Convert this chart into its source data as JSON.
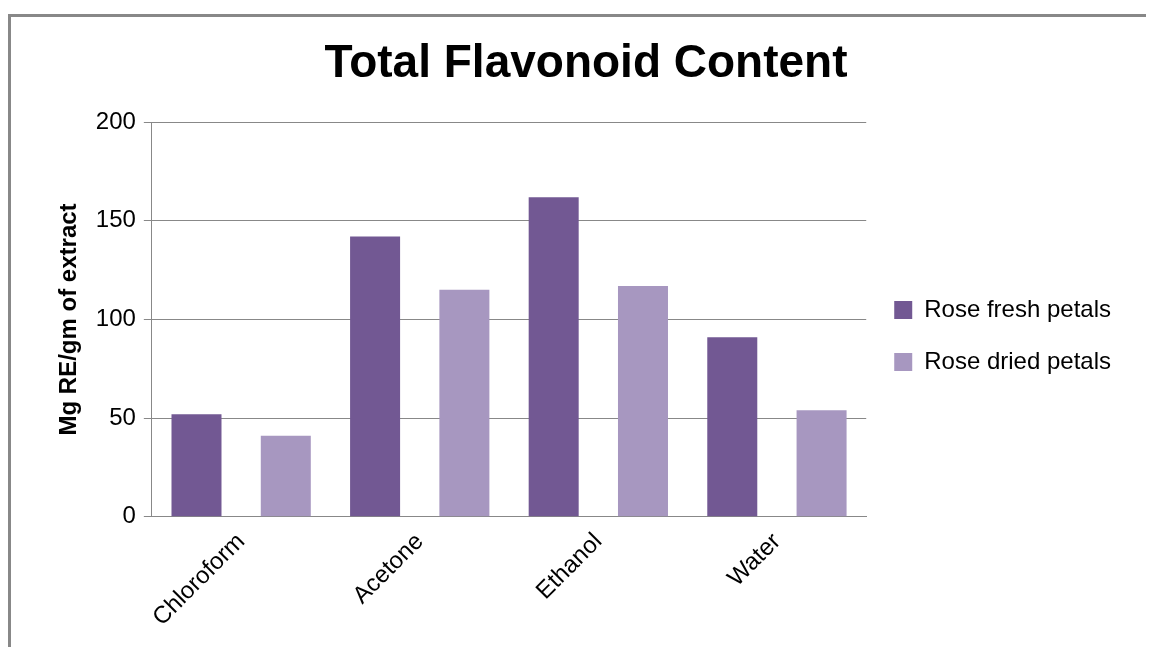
{
  "chart_data": {
    "type": "bar",
    "title": "Total Flavonoid Content",
    "ylabel": "Mg RE/gm of extract",
    "categories": [
      "Chloroform",
      "Acetone",
      "Ethanol",
      "Water"
    ],
    "series": [
      {
        "name": "Rose fresh petals",
        "color": "#725893",
        "values": [
          52,
          142,
          162,
          91
        ]
      },
      {
        "name": "Rose dried petals",
        "color": "#a797c0",
        "values": [
          41,
          115,
          117,
          54
        ]
      }
    ],
    "ylim": [
      0,
      200
    ],
    "yticks": [
      0,
      50,
      100,
      150,
      200
    ],
    "grid": "y",
    "legend": "right"
  }
}
